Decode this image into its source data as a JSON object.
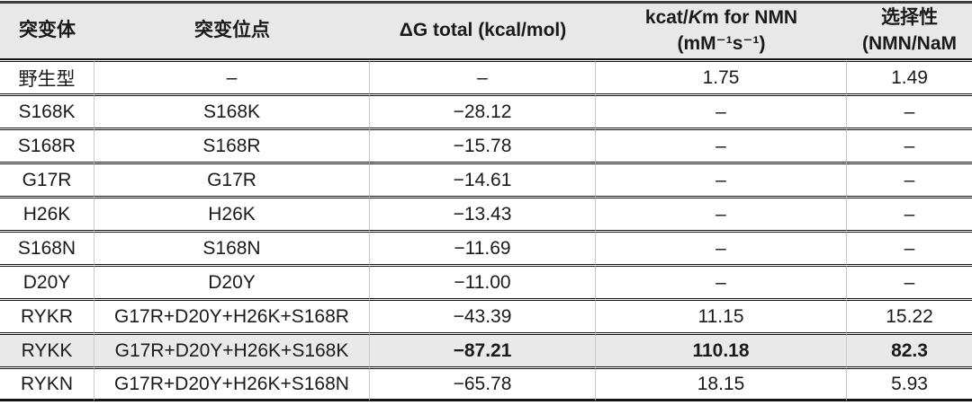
{
  "table": {
    "headers": [
      {
        "label": "突变体"
      },
      {
        "label": "突变位点"
      },
      {
        "label": "ΔG total (kcal/mol)"
      },
      {
        "line1_prefix": "kcat/",
        "line1_italic": "K",
        "line1_suffix": "m for NMN",
        "line2": "(mM⁻¹s⁻¹)"
      },
      {
        "line1": "选择性",
        "line2": "(NMN/NaM"
      }
    ],
    "rows": [
      {
        "cells": [
          "野生型",
          "–",
          "–",
          "1.75",
          "1.49"
        ],
        "highlight": false,
        "bold_cells": []
      },
      {
        "cells": [
          "S168K",
          "S168K",
          "−28.12",
          "–",
          "–"
        ],
        "highlight": false,
        "bold_cells": []
      },
      {
        "cells": [
          "S168R",
          "S168R",
          "−15.78",
          "–",
          "–"
        ],
        "highlight": false,
        "bold_cells": []
      },
      {
        "cells": [
          "G17R",
          "G17R",
          "−14.61",
          "–",
          "–"
        ],
        "highlight": false,
        "bold_cells": []
      },
      {
        "cells": [
          "H26K",
          "H26K",
          "−13.43",
          "–",
          "–"
        ],
        "highlight": false,
        "bold_cells": []
      },
      {
        "cells": [
          "S168N",
          "S168N",
          "−11.69",
          "–",
          "–"
        ],
        "highlight": false,
        "bold_cells": []
      },
      {
        "cells": [
          "D20Y",
          "D20Y",
          "−11.00",
          "–",
          "–"
        ],
        "highlight": false,
        "bold_cells": []
      },
      {
        "cells": [
          "RYKR",
          "G17R+D20Y+H26K+S168R",
          "−43.39",
          "11.15",
          "15.22"
        ],
        "highlight": false,
        "bold_cells": []
      },
      {
        "cells": [
          "RYKK",
          "G17R+D20Y+H26K+S168K",
          "−87.21",
          "110.18",
          "82.3"
        ],
        "highlight": true,
        "bold_cells": [
          2,
          3,
          4
        ]
      },
      {
        "cells": [
          "RYKN",
          "G17R+D20Y+H26K+S168N",
          "−65.78",
          "18.15",
          "5.93"
        ],
        "highlight": false,
        "bold_cells": []
      }
    ],
    "colors": {
      "header_bg": "#e8e8e8",
      "highlight_row_bg": "#e9e9e9",
      "horizontal_line": "#141414",
      "vertical_divider": "#c9c9c9",
      "text": "#1a1a1a"
    }
  }
}
